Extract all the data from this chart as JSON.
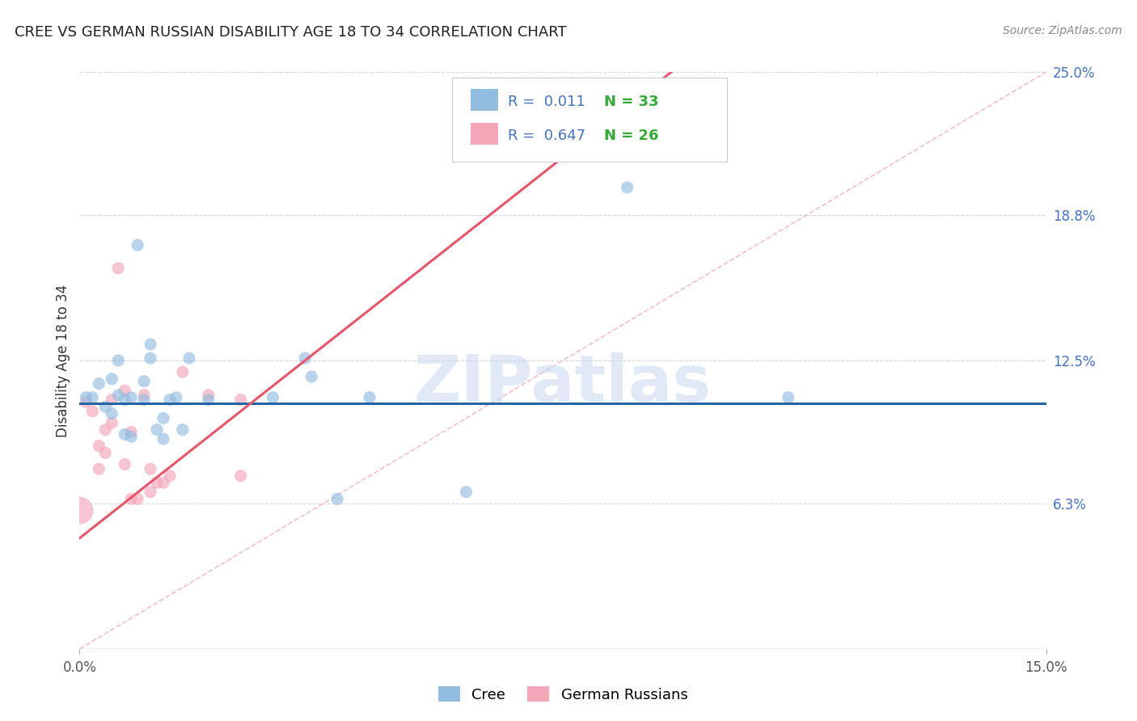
{
  "title": "CREE VS GERMAN RUSSIAN DISABILITY AGE 18 TO 34 CORRELATION CHART",
  "source": "Source: ZipAtlas.com",
  "ylabel": "Disability Age 18 to 34",
  "xlim": [
    0.0,
    0.15
  ],
  "ylim": [
    0.0,
    0.25
  ],
  "ytick_right_labels": [
    "6.3%",
    "12.5%",
    "18.8%",
    "25.0%"
  ],
  "ytick_right_vals": [
    0.063,
    0.125,
    0.188,
    0.25
  ],
  "cree_color": "#92bce0",
  "german_color": "#f4a7b9",
  "cree_line_color": "#2463a4",
  "german_line_color": "#e8556a",
  "diagonal_color": "#f0c0cc",
  "legend_r_cree": "0.011",
  "legend_n_cree": "33",
  "legend_r_german": "0.647",
  "legend_n_german": "26",
  "watermark": "ZIPatlas",
  "cree_points": [
    [
      0.001,
      0.109
    ],
    [
      0.002,
      0.109
    ],
    [
      0.003,
      0.115
    ],
    [
      0.004,
      0.105
    ],
    [
      0.005,
      0.102
    ],
    [
      0.005,
      0.117
    ],
    [
      0.006,
      0.11
    ],
    [
      0.006,
      0.125
    ],
    [
      0.007,
      0.093
    ],
    [
      0.007,
      0.108
    ],
    [
      0.008,
      0.092
    ],
    [
      0.008,
      0.109
    ],
    [
      0.009,
      0.175
    ],
    [
      0.01,
      0.108
    ],
    [
      0.01,
      0.116
    ],
    [
      0.011,
      0.132
    ],
    [
      0.011,
      0.126
    ],
    [
      0.012,
      0.095
    ],
    [
      0.013,
      0.1
    ],
    [
      0.013,
      0.091
    ],
    [
      0.014,
      0.108
    ],
    [
      0.015,
      0.109
    ],
    [
      0.016,
      0.095
    ],
    [
      0.017,
      0.126
    ],
    [
      0.02,
      0.108
    ],
    [
      0.03,
      0.109
    ],
    [
      0.035,
      0.126
    ],
    [
      0.036,
      0.118
    ],
    [
      0.04,
      0.065
    ],
    [
      0.045,
      0.109
    ],
    [
      0.06,
      0.068
    ],
    [
      0.085,
      0.2
    ],
    [
      0.11,
      0.109
    ]
  ],
  "german_points": [
    [
      0.0,
      0.06
    ],
    [
      0.001,
      0.107
    ],
    [
      0.002,
      0.103
    ],
    [
      0.003,
      0.088
    ],
    [
      0.003,
      0.078
    ],
    [
      0.004,
      0.095
    ],
    [
      0.004,
      0.085
    ],
    [
      0.005,
      0.108
    ],
    [
      0.005,
      0.098
    ],
    [
      0.006,
      0.165
    ],
    [
      0.007,
      0.112
    ],
    [
      0.007,
      0.08
    ],
    [
      0.008,
      0.094
    ],
    [
      0.008,
      0.065
    ],
    [
      0.009,
      0.065
    ],
    [
      0.01,
      0.11
    ],
    [
      0.011,
      0.078
    ],
    [
      0.011,
      0.068
    ],
    [
      0.012,
      0.072
    ],
    [
      0.013,
      0.072
    ],
    [
      0.014,
      0.075
    ],
    [
      0.016,
      0.12
    ],
    [
      0.02,
      0.11
    ],
    [
      0.025,
      0.108
    ],
    [
      0.025,
      0.075
    ],
    [
      0.065,
      0.215
    ]
  ],
  "cree_sizes": [
    120,
    120,
    120,
    120,
    120,
    120,
    120,
    120,
    120,
    120,
    120,
    120,
    120,
    120,
    120,
    120,
    120,
    120,
    120,
    120,
    120,
    120,
    120,
    120,
    120,
    120,
    120,
    120,
    120,
    120,
    120,
    120,
    120
  ],
  "german_sizes": [
    600,
    120,
    120,
    120,
    120,
    120,
    120,
    120,
    120,
    120,
    120,
    120,
    120,
    120,
    120,
    120,
    120,
    120,
    120,
    120,
    120,
    120,
    120,
    120,
    120,
    120
  ],
  "point_alpha": 0.65,
  "background_color": "#ffffff",
  "grid_color": "#cccccc",
  "legend_text_color": "#4472c4",
  "legend_n_color": "#33aa33",
  "cree_line_fixed_y": 0.1065,
  "german_line_slope": 2.2,
  "german_line_intercept": 0.048
}
